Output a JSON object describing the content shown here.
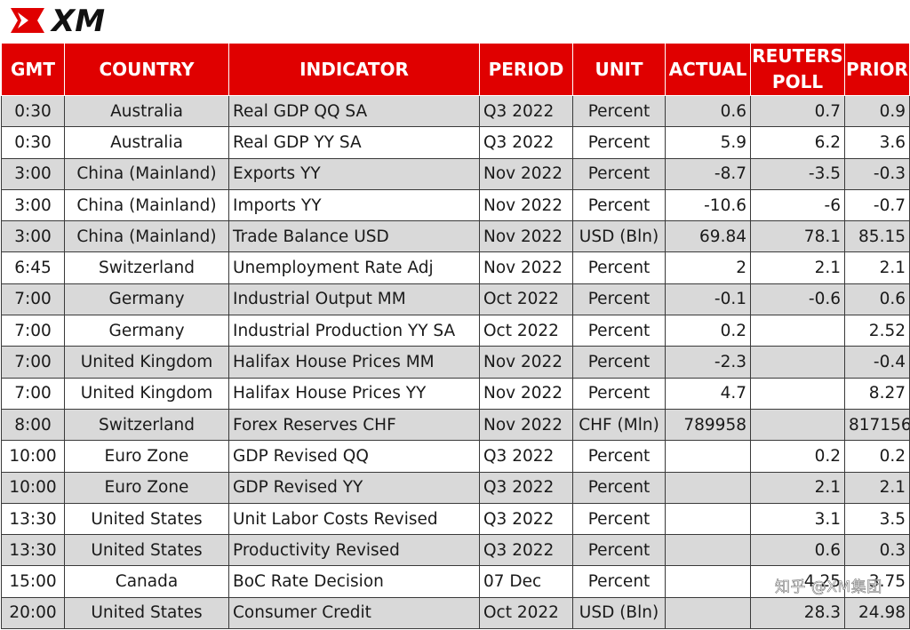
{
  "brand": {
    "logo_text": "XM",
    "red": "#e00000",
    "watermark": "知乎 @XM集团"
  },
  "table": {
    "headers": [
      "GMT",
      "COUNTRY",
      "INDICATOR",
      "PERIOD",
      "UNIT",
      "ACTUAL",
      "REUTERS POLL",
      "PRIOR"
    ],
    "rows": [
      {
        "gmt": "0:30",
        "country": "Australia",
        "indicator": "Real GDP QQ SA",
        "period": "Q3 2022",
        "unit": "Percent",
        "actual": "0.6",
        "poll": "0.7",
        "prior": "0.9"
      },
      {
        "gmt": "0:30",
        "country": "Australia",
        "indicator": "Real GDP YY SA",
        "period": "Q3 2022",
        "unit": "Percent",
        "actual": "5.9",
        "poll": "6.2",
        "prior": "3.6"
      },
      {
        "gmt": "3:00",
        "country": "China (Mainland)",
        "indicator": "Exports YY",
        "period": "Nov 2022",
        "unit": "Percent",
        "actual": "-8.7",
        "poll": "-3.5",
        "prior": "-0.3"
      },
      {
        "gmt": "3:00",
        "country": "China (Mainland)",
        "indicator": "Imports YY",
        "period": "Nov 2022",
        "unit": "Percent",
        "actual": "-10.6",
        "poll": "-6",
        "prior": "-0.7"
      },
      {
        "gmt": "3:00",
        "country": "China (Mainland)",
        "indicator": "Trade Balance USD",
        "period": "Nov 2022",
        "unit": "USD (Bln)",
        "actual": "69.84",
        "poll": "78.1",
        "prior": "85.15"
      },
      {
        "gmt": "6:45",
        "country": "Switzerland",
        "indicator": "Unemployment Rate Adj",
        "period": "Nov 2022",
        "unit": "Percent",
        "actual": "2",
        "poll": "2.1",
        "prior": "2.1"
      },
      {
        "gmt": "7:00",
        "country": "Germany",
        "indicator": "Industrial Output MM",
        "period": "Oct 2022",
        "unit": "Percent",
        "actual": "-0.1",
        "poll": "-0.6",
        "prior": "0.6"
      },
      {
        "gmt": "7:00",
        "country": "Germany",
        "indicator": "Industrial Production YY SA",
        "period": "Oct 2022",
        "unit": "Percent",
        "actual": "0.2",
        "poll": "",
        "prior": "2.52"
      },
      {
        "gmt": "7:00",
        "country": "United Kingdom",
        "indicator": "Halifax House Prices MM",
        "period": "Nov 2022",
        "unit": "Percent",
        "actual": "-2.3",
        "poll": "",
        "prior": "-0.4"
      },
      {
        "gmt": "7:00",
        "country": "United Kingdom",
        "indicator": "Halifax House Prices YY",
        "period": "Nov 2022",
        "unit": "Percent",
        "actual": "4.7",
        "poll": "",
        "prior": "8.27"
      },
      {
        "gmt": "8:00",
        "country": "Switzerland",
        "indicator": "Forex Reserves CHF",
        "period": "Nov 2022",
        "unit": "CHF (Mln)",
        "actual": "789958",
        "poll": "",
        "prior": "817156"
      },
      {
        "gmt": "10:00",
        "country": "Euro Zone",
        "indicator": "GDP Revised QQ",
        "period": "Q3 2022",
        "unit": "Percent",
        "actual": "",
        "poll": "0.2",
        "prior": "0.2"
      },
      {
        "gmt": "10:00",
        "country": "Euro Zone",
        "indicator": "GDP Revised YY",
        "period": "Q3 2022",
        "unit": "Percent",
        "actual": "",
        "poll": "2.1",
        "prior": "2.1"
      },
      {
        "gmt": "13:30",
        "country": "United States",
        "indicator": "Unit Labor Costs Revised",
        "period": "Q3 2022",
        "unit": "Percent",
        "actual": "",
        "poll": "3.1",
        "prior": "3.5"
      },
      {
        "gmt": "13:30",
        "country": "United States",
        "indicator": "Productivity Revised",
        "period": "Q3 2022",
        "unit": "Percent",
        "actual": "",
        "poll": "0.6",
        "prior": "0.3"
      },
      {
        "gmt": "15:00",
        "country": "Canada",
        "indicator": "BoC Rate Decision",
        "period": "07 Dec",
        "unit": "Percent",
        "actual": "",
        "poll": "4.25",
        "prior": "3.75"
      },
      {
        "gmt": "20:00",
        "country": "United States",
        "indicator": "Consumer Credit",
        "period": "Oct 2022",
        "unit": "USD (Bln)",
        "actual": "",
        "poll": "28.3",
        "prior": "24.98"
      }
    ]
  }
}
